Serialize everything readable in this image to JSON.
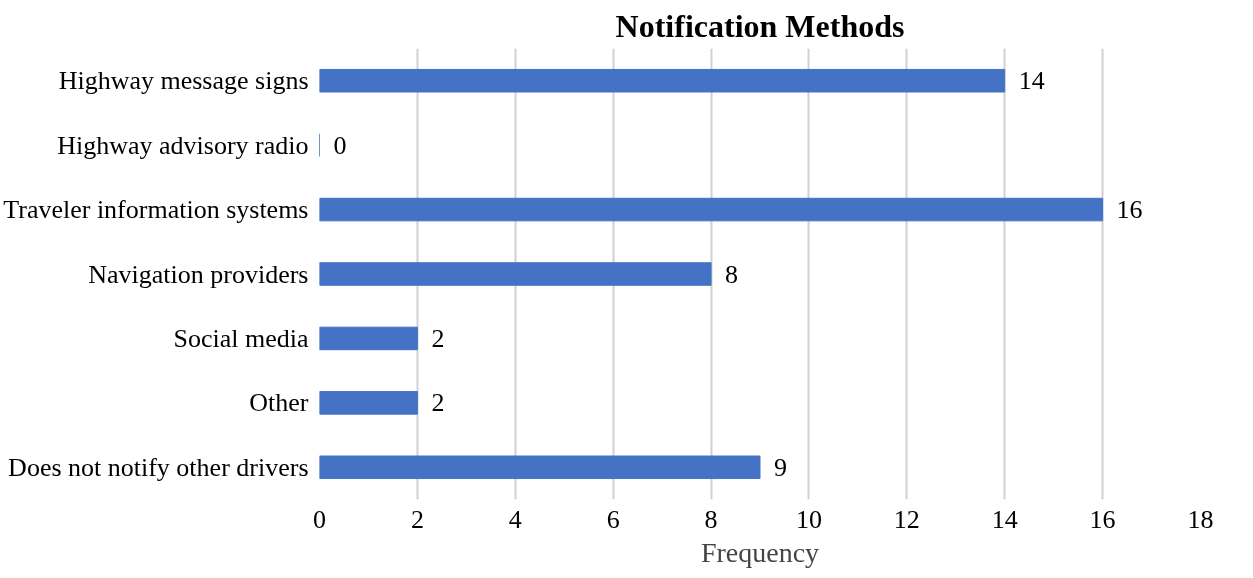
{
  "chart_data": {
    "type": "bar",
    "orientation": "horizontal",
    "title": "Notification Methods",
    "xlabel": "Frequency",
    "categories": [
      "Highway message signs",
      "Highway advisory radio",
      "Traveler information systems",
      "Navigation providers",
      "Social media",
      "Other",
      "Does not notify other drivers"
    ],
    "values": [
      14,
      0,
      16,
      8,
      2,
      2,
      9
    ],
    "color": "#4472c4",
    "xlim": [
      0,
      18
    ],
    "xticks": [
      0,
      2,
      4,
      6,
      8,
      10,
      12,
      14,
      16,
      18
    ],
    "grid": "x",
    "data_labels": true
  }
}
